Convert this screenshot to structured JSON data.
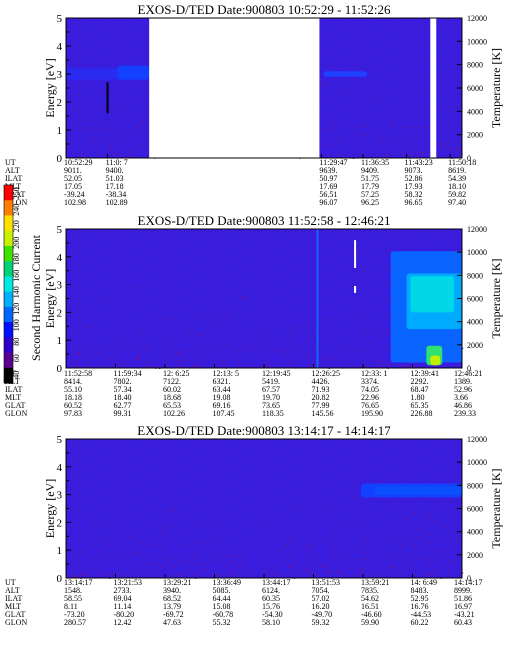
{
  "chart_data": {
    "type": "heatmap",
    "colorbar": {
      "label": "Second Harmonic Current",
      "ticks": [
        "40",
        "60",
        "80",
        "100",
        "120",
        "140",
        "160",
        "180",
        "200",
        "220",
        "240",
        "250"
      ],
      "colors": [
        "#000000",
        "#5a0090",
        "#3000c8",
        "#0010ff",
        "#0068ff",
        "#00b0ff",
        "#00e8e0",
        "#00d078",
        "#40e000",
        "#c8f000",
        "#ffe000",
        "#ff8000",
        "#ff0000"
      ]
    },
    "panels": [
      {
        "title": "EXOS-D/TED   Date:900803  10:52:29 - 11:52:26",
        "ylabel": "Energy [eV]",
        "y2label": "Temperature [K]",
        "ylim": [
          0,
          5
        ],
        "y2lim": [
          0,
          12000
        ],
        "yticks": [
          "0",
          "1",
          "2",
          "3",
          "4",
          "5"
        ],
        "y2ticks": [
          "0",
          "2000",
          "4000",
          "6000",
          "8000",
          "10000",
          "12000"
        ],
        "data_gaps": [
          [
            0.21,
            0.64
          ],
          [
            0.92,
            0.935
          ]
        ],
        "features": [
          {
            "kind": "band",
            "x0": 0.0,
            "x1": 0.21,
            "e0": 2.8,
            "e1": 3.2,
            "color": "#2a2af0",
            "level": 0.15
          },
          {
            "kind": "band",
            "x0": 0.13,
            "x1": 0.21,
            "e0": 2.8,
            "e1": 3.3,
            "color": "#1440ff",
            "level": 0.35
          },
          {
            "kind": "band",
            "x0": 0.65,
            "x1": 0.76,
            "e0": 2.9,
            "e1": 3.1,
            "color": "#1e40ff",
            "level": 0.3
          },
          {
            "kind": "vline",
            "x": 0.105,
            "e0": 1.6,
            "e1": 2.7,
            "color": "#000000"
          }
        ],
        "ephemeris": {
          "rows": [
            "UT",
            "ALT",
            "ILAT",
            "MLT",
            "GLAT",
            "GLON"
          ],
          "columns": [
            [
              "10:52:29",
              "9011.",
              "52.05",
              "17.05",
              "-39.24",
              "102.98"
            ],
            [
              "11:0: 7",
              "9400.",
              "51.03",
              "17.18",
              "-38.34",
              "102.89"
            ],
            [
              "11:29:47",
              "9639.",
              "50.97",
              "17.69",
              "56.51",
              "96.07"
            ],
            [
              "11:36:35",
              "9409.",
              "51.75",
              "17.79",
              "57.25",
              "96.25"
            ],
            [
              "11:43:23",
              "9073.",
              "52.86",
              "17.93",
              "58.32",
              "96.65"
            ],
            [
              "11:50:18",
              "8619.",
              "54.39",
              "18.10",
              "59.82",
              "97.40"
            ]
          ]
        }
      },
      {
        "title": "EXOS-D/TED   Date:900803  11:52:58 - 12:46:21",
        "ylabel": "Energy [eV]",
        "y2label": "Temperature [K]",
        "ylim": [
          0,
          5
        ],
        "y2lim": [
          0,
          12000
        ],
        "yticks": [
          "0",
          "1",
          "2",
          "3",
          "4",
          "5"
        ],
        "y2ticks": [
          "0",
          "2000",
          "4000",
          "6000",
          "8000",
          "10000",
          "12000"
        ],
        "data_gaps": [],
        "features": [
          {
            "kind": "band",
            "x0": 0.82,
            "x1": 1.0,
            "e0": 0.2,
            "e1": 4.2,
            "color": "#0a64ff",
            "level": 0.45
          },
          {
            "kind": "band",
            "x0": 0.86,
            "x1": 1.0,
            "e0": 1.4,
            "e1": 3.4,
            "color": "#00aaff",
            "level": 0.6
          },
          {
            "kind": "band",
            "x0": 0.87,
            "x1": 0.98,
            "e0": 2.0,
            "e1": 3.3,
            "color": "#00d8e8",
            "level": 0.75
          },
          {
            "kind": "band",
            "x0": 0.91,
            "x1": 0.95,
            "e0": 0.1,
            "e1": 0.8,
            "color": "#30e070",
            "level": 0.85
          },
          {
            "kind": "band",
            "x0": 0.92,
            "x1": 0.945,
            "e0": 0.1,
            "e1": 0.45,
            "color": "#c0f000",
            "level": 0.95
          },
          {
            "kind": "vline",
            "x": 0.635,
            "e0": 0.0,
            "e1": 5.0,
            "color": "#1468ff"
          },
          {
            "kind": "vline",
            "x": 0.73,
            "e0": 3.6,
            "e1": 4.6,
            "color": "#ffffff"
          },
          {
            "kind": "vline",
            "x": 0.73,
            "e0": 2.7,
            "e1": 2.95,
            "color": "#ffffff"
          }
        ],
        "ephemeris": {
          "rows": [
            "UT",
            "ALT",
            "ILAT",
            "MLT",
            "GLAT",
            "GLON"
          ],
          "columns": [
            [
              "11:52:58",
              "8414.",
              "55.10",
              "18.18",
              "60.52",
              "97.83"
            ],
            [
              "11:59:34",
              "7802.",
              "57.34",
              "18.40",
              "62.77",
              "99.31"
            ],
            [
              "12: 6:25",
              "7122.",
              "60.02",
              "18.68",
              "65.53",
              "102.26"
            ],
            [
              "12:13: 5",
              "6321.",
              "63.44",
              "19.08",
              "69.16",
              "107.45"
            ],
            [
              "12:19:45",
              "5419.",
              "67.57",
              "19.70",
              "73.65",
              "118.35"
            ],
            [
              "12:26:25",
              "4426.",
              "71.93",
              "20.82",
              "77.99",
              "145.56"
            ],
            [
              "12:33: 1",
              "3374.",
              "74.05",
              "22.96",
              "76.65",
              "195.90"
            ],
            [
              "12:39:41",
              "2292.",
              "68.47",
              "1.80",
              "65.35",
              "226.88"
            ],
            [
              "12:46:21",
              "1389.",
              "52.96",
              "3.66",
              "46.86",
              "239.33"
            ]
          ]
        }
      },
      {
        "title": "EXOS-D/TED   Date:900803  13:14:17 - 14:14:17",
        "ylabel": "Energy [eV]",
        "y2label": "Temperature [K]",
        "ylim": [
          0,
          5
        ],
        "y2lim": [
          0,
          12000
        ],
        "yticks": [
          "0",
          "1",
          "2",
          "3",
          "4",
          "5"
        ],
        "y2ticks": [
          "0",
          "2000",
          "4000",
          "6000",
          "8000",
          "10000",
          "12000"
        ],
        "data_gaps": [],
        "features": [
          {
            "kind": "band",
            "x0": 0.745,
            "x1": 1.0,
            "e0": 2.9,
            "e1": 3.4,
            "color": "#1440ff",
            "level": 0.35
          },
          {
            "kind": "band",
            "x0": 0.78,
            "x1": 1.0,
            "e0": 3.0,
            "e1": 3.3,
            "color": "#0a50ff",
            "level": 0.45
          }
        ],
        "ephemeris": {
          "rows": [
            "UT",
            "ALT",
            "ILAT",
            "MLT",
            "GLAT",
            "GLON"
          ],
          "columns": [
            [
              "13:14:17",
              "1548.",
              "58.55",
              "8.11",
              "-73.20",
              "280.57"
            ],
            [
              "13:21:53",
              "2733.",
              "69.04",
              "11.14",
              "-80.20",
              "12.42"
            ],
            [
              "13:29:21",
              "3940.",
              "68.52",
              "13.79",
              "-69.72",
              "47.63"
            ],
            [
              "13:36:49",
              "5085.",
              "64.44",
              "15.08",
              "-60.78",
              "55.32"
            ],
            [
              "13:44:17",
              "6124.",
              "60.35",
              "15.76",
              "-54.30",
              "58.10"
            ],
            [
              "13:51:53",
              "7054.",
              "57.02",
              "16.20",
              "-49.70",
              "59.32"
            ],
            [
              "13:59:21",
              "7835.",
              "54.62",
              "16.51",
              "-46.60",
              "59.90"
            ],
            [
              "14: 6:49",
              "8483.",
              "52.95",
              "16.76",
              "-44.53",
              "60.22"
            ],
            [
              "14:14:17",
              "8999.",
              "51.86",
              "16.97",
              "-43.21",
              "60.43"
            ]
          ]
        }
      }
    ]
  }
}
